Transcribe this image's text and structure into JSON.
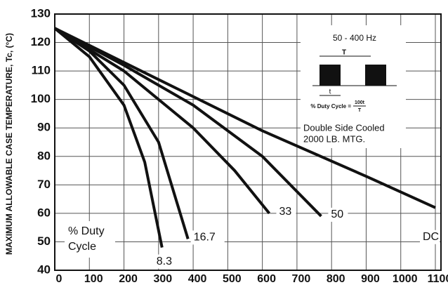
{
  "chart_data": {
    "type": "line",
    "ylabel": "MAXIMUM ALLOWABLE CASE TEMPERATURE, Tc, (°C)",
    "xlim": [
      0,
      1100
    ],
    "xticks": [
      0,
      100,
      200,
      300,
      400,
      500,
      600,
      700,
      800,
      900,
      1000,
      1100
    ],
    "ylim": [
      40,
      130
    ],
    "yticks": [
      40,
      50,
      60,
      70,
      80,
      90,
      100,
      110,
      120,
      130
    ],
    "grid": true,
    "series": [
      {
        "name": "8.3",
        "color": "#111111",
        "x": [
          0,
          100,
          200,
          260,
          310
        ],
        "values": [
          125,
          115,
          98,
          78,
          48
        ]
      },
      {
        "name": "16.7",
        "color": "#111111",
        "x": [
          0,
          100,
          200,
          300,
          385
        ],
        "values": [
          125,
          117,
          105,
          85,
          51
        ]
      },
      {
        "name": "33",
        "color": "#111111",
        "x": [
          0,
          200,
          400,
          520,
          620
        ],
        "values": [
          125,
          110,
          90,
          75,
          60
        ]
      },
      {
        "name": "50",
        "color": "#111111",
        "x": [
          0,
          200,
          400,
          600,
          770
        ],
        "values": [
          125,
          112,
          98,
          80,
          59
        ]
      },
      {
        "name": "DC",
        "color": "#111111",
        "x": [
          0,
          300,
          600,
          900,
          1100
        ],
        "values": [
          125,
          107,
          89,
          73,
          62
        ]
      }
    ],
    "legend_title": [
      "% Duty",
      "Cycle"
    ],
    "inset": {
      "frequency": "50 - 400 Hz",
      "period": "T",
      "pulse": "t",
      "formula": "% Duty Cycle =",
      "numerator": "100t",
      "denominator": "T",
      "notes": [
        "Double Side Cooled",
        "2000 LB. MTG."
      ]
    }
  }
}
